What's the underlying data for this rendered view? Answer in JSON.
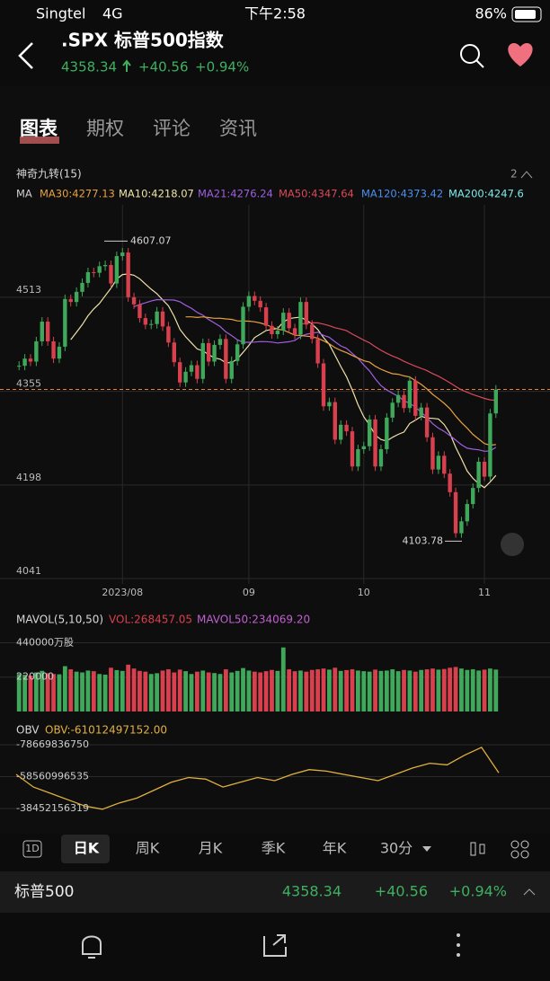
{
  "status": {
    "carrier": "Singtel",
    "network": "4G",
    "time": "下午2:58",
    "battery": "86%"
  },
  "header": {
    "title": ".SPX 标普500指数",
    "price": "4358.34",
    "change": "+40.56",
    "percent": "+0.94%"
  },
  "tabs": [
    "图表",
    "期权",
    "评论",
    "资讯"
  ],
  "indicator": {
    "title": "神奇九转(15)",
    "count": "2"
  },
  "ma_legend": [
    {
      "text": "MA",
      "color": "#cfcfcf"
    },
    {
      "text": "MA30:4277.13",
      "color": "#e8a040"
    },
    {
      "text": "MA10:4218.07",
      "color": "#efe2a8"
    },
    {
      "text": "MA21:4276.24",
      "color": "#a05ee0"
    },
    {
      "text": "MA50:4347.64",
      "color": "#d84a5a"
    },
    {
      "text": "MA120:4373.42",
      "color": "#4a8ff0"
    },
    {
      "text": "MA200:4247.6",
      "color": "#7ee8e8"
    }
  ],
  "chart_data": {
    "type": "candlestick",
    "closes": [
      4398,
      4410,
      4405,
      4439,
      4472,
      4439,
      4410,
      4430,
      4510,
      4505,
      4522,
      4537,
      4555,
      4554,
      4565,
      4567,
      4536,
      4582,
      4588,
      4513,
      4501,
      4478,
      4467,
      4468,
      4489,
      4464,
      4437,
      4404,
      4370,
      4388,
      4399,
      4376,
      4436,
      4405,
      4433,
      4443,
      4376,
      4406,
      4434,
      4497,
      4515,
      4507,
      4496,
      4465,
      4451,
      4457,
      4487,
      4461,
      4450,
      4505,
      4467,
      4443,
      4402,
      4330,
      4337,
      4274,
      4299,
      4288,
      4229,
      4258,
      4263,
      4308,
      4229,
      4258,
      4311,
      4336,
      4349,
      4327,
      4373,
      4314,
      4328,
      4278,
      4224,
      4247,
      4217,
      4186,
      4117,
      4137,
      4166,
      4193,
      4237,
      4212,
      4318,
      4358
    ],
    "up_color": "#3fa85a",
    "down_color": "#d8404e",
    "ylim": [
      4032,
      4668
    ],
    "yticks": [
      4041,
      4198,
      4355,
      4513
    ],
    "xticks": [
      {
        "value": 18,
        "label": "2023/08"
      },
      {
        "value": 40,
        "label": "09"
      },
      {
        "value": 60,
        "label": "10"
      },
      {
        "value": 81,
        "label": "11"
      }
    ],
    "high": {
      "value": 4607.07,
      "label": "4607.07"
    },
    "low": {
      "value": 4103.78,
      "label": "4103.78"
    },
    "volume": {
      "title": "MAVOL(5,10,50)",
      "vol": "VOL:268457.05",
      "mavol50": "MAVOL50:234069.20",
      "values": [
        240000,
        235000,
        230000,
        250000,
        260000,
        245000,
        240000,
        238000,
        290000,
        270000,
        255000,
        250000,
        262000,
        258000,
        240000,
        236000,
        280000,
        265000,
        260000,
        300000,
        275000,
        260000,
        255000,
        240000,
        245000,
        262000,
        270000,
        250000,
        268000,
        258000,
        240000,
        255000,
        262000,
        250000,
        246000,
        240000,
        270000,
        250000,
        260000,
        278000,
        262000,
        255000,
        250000,
        258000,
        266000,
        260000,
        410000,
        270000,
        258000,
        262000,
        255000,
        266000,
        270000,
        275000,
        268000,
        280000,
        260000,
        265000,
        270000,
        262000,
        258000,
        255000,
        268000,
        260000,
        262000,
        270000,
        258000,
        266000,
        262000,
        255000,
        266000,
        270000,
        275000,
        268000,
        272000,
        280000,
        285000,
        275000,
        266000,
        270000,
        262000,
        268000,
        275000,
        268457
      ],
      "ylim": [
        0,
        460000
      ],
      "yticks": [
        {
          "value": 440000,
          "label": "440000万股"
        },
        220000
      ]
    },
    "obv": {
      "title": "OBV",
      "value": "OBV:-61012497152.00",
      "values": [
        -60000000000,
        -52000000000,
        -48000000000,
        -44000000000,
        -40000000000,
        -38000000000,
        -42000000000,
        -45000000000,
        -50000000000,
        -55000000000,
        -58000000000,
        -57000000000,
        -52000000000,
        -55000000000,
        -58000000000,
        -56000000000,
        -60000000000,
        -63000000000,
        -62000000000,
        -60000000000,
        -58000000000,
        -56000000000,
        -60000000000,
        -64000000000,
        -67000000000,
        -66000000000,
        -72000000000,
        -77000000000,
        -61012497152
      ],
      "ylim": [
        -29955000000,
        -82635000000
      ],
      "yticks": [
        -38452156319,
        -58560996535,
        -78669836750
      ],
      "color": "#e0b040"
    }
  },
  "periods": [
    "1D",
    "日K",
    "周K",
    "月K",
    "季K",
    "年K",
    "30分"
  ],
  "quote_bar": {
    "name": "标普500",
    "price": "4358.34",
    "change": "+40.56",
    "percent": "+0.94%"
  }
}
